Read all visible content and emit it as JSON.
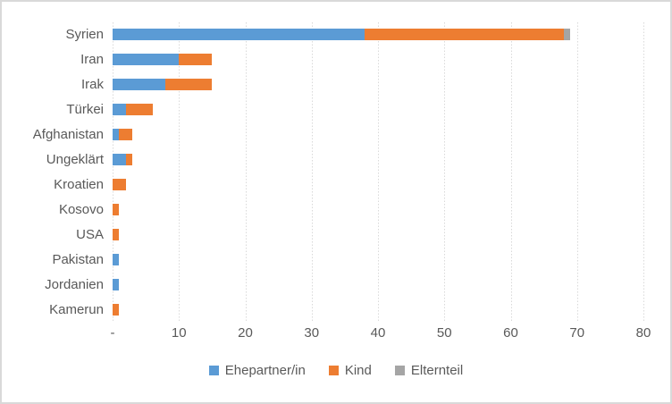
{
  "chart_data": {
    "type": "bar",
    "orientation": "horizontal",
    "stacked": true,
    "title": "",
    "categories": [
      "Syrien",
      "Iran",
      "Irak",
      "Türkei",
      "Afghanistan",
      "Ungeklärt",
      "Kroatien",
      "Kosovo",
      "USA",
      "Pakistan",
      "Jordanien",
      "Kamerun"
    ],
    "series": [
      {
        "name": "Ehepartner/in",
        "color": "#5B9BD5",
        "values": [
          38,
          10,
          8,
          2,
          1,
          2,
          0,
          0,
          0,
          1,
          1,
          0
        ]
      },
      {
        "name": "Kind",
        "color": "#ED7D31",
        "values": [
          30,
          5,
          7,
          4,
          2,
          1,
          2,
          1,
          1,
          0,
          0,
          1
        ]
      },
      {
        "name": "Elternteil",
        "color": "#A5A5A5",
        "values": [
          1,
          0,
          0,
          0,
          0,
          0,
          0,
          0,
          0,
          0,
          0,
          0
        ]
      }
    ],
    "x_axis": {
      "min": 0,
      "max": 80,
      "tick_step": 10,
      "tick_labels": [
        "-",
        "10",
        "20",
        "30",
        "40",
        "50",
        "60",
        "70",
        "80"
      ]
    },
    "grid": true,
    "legend_position": "bottom"
  },
  "colors": {
    "grid": "#D9D9D9",
    "axis_text": "#595959",
    "frame_border": "#D9D9D9",
    "background": "#FFFFFF"
  }
}
